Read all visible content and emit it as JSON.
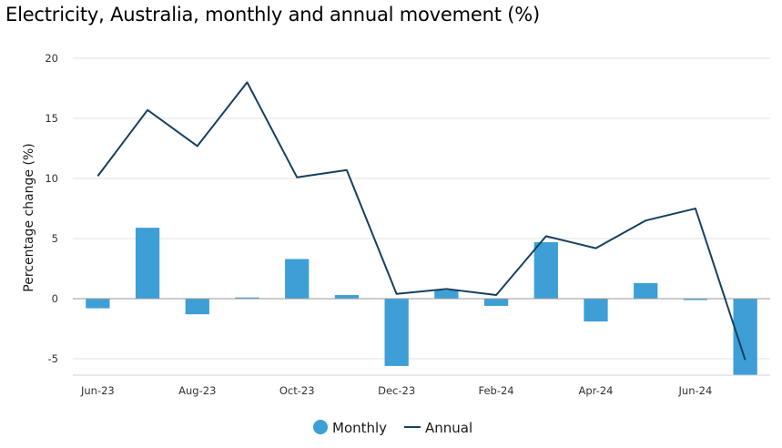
{
  "title": "Electricity, Australia, monthly and annual movement (%)",
  "chart_data": {
    "type": "bar",
    "title": "Electricity, Australia, monthly and annual movement (%)",
    "xlabel": "",
    "ylabel": "Percentage change (%)",
    "ylim": [
      -6.5,
      20
    ],
    "yticks": [
      20,
      15,
      10,
      5,
      0,
      -5
    ],
    "grid": true,
    "legend_position": "bottom",
    "categories": [
      "Jun-23",
      "Jul-23",
      "Aug-23",
      "Sep-23",
      "Oct-23",
      "Nov-23",
      "Dec-23",
      "Jan-24",
      "Feb-24",
      "Mar-24",
      "Apr-24",
      "May-24",
      "Jun-24",
      "Jul-24"
    ],
    "x_tick_labels": [
      "Jun-23",
      "Aug-23",
      "Oct-23",
      "Dec-23",
      "Feb-24",
      "Apr-24",
      "Jun-24"
    ],
    "series": [
      {
        "name": "Monthly",
        "type": "bar",
        "color": "#3d9fd6",
        "values": [
          -0.8,
          5.9,
          -1.3,
          0.1,
          3.3,
          0.3,
          -5.6,
          0.7,
          -0.6,
          4.7,
          -1.9,
          1.3,
          0.0,
          -6.4
        ]
      },
      {
        "name": "Annual",
        "type": "line",
        "color": "#17405f",
        "values": [
          10.2,
          15.7,
          12.7,
          18.0,
          10.1,
          10.7,
          0.4,
          0.8,
          0.3,
          5.2,
          4.2,
          6.5,
          7.5,
          -5.1
        ]
      }
    ]
  }
}
